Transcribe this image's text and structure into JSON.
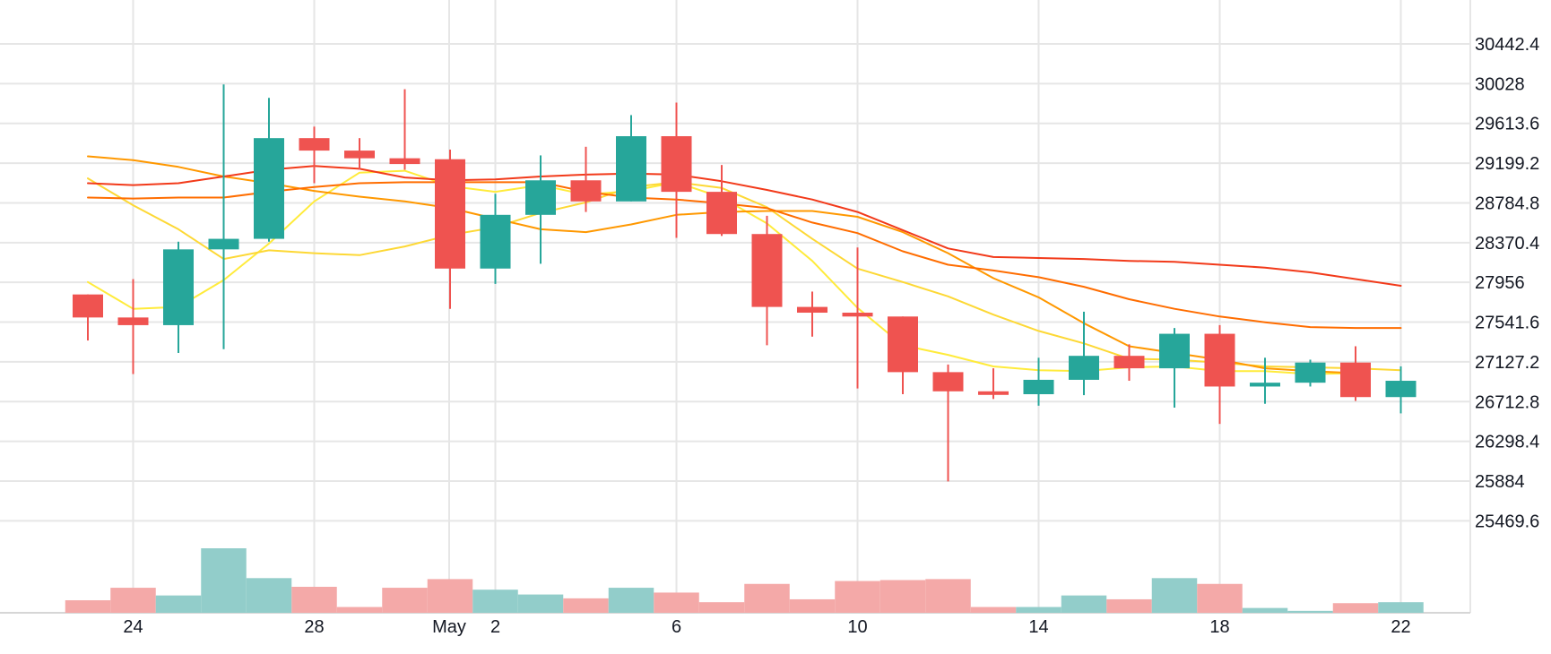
{
  "chart_data": {
    "type": "candlestick",
    "price_axis": {
      "ticks": [
        "30442.4",
        "30028",
        "29613.6",
        "29199.2",
        "28784.8",
        "28370.4",
        "27956",
        "27541.6",
        "27127.2",
        "26712.8",
        "26298.4",
        "25884",
        "25469.6"
      ],
      "range": [
        25055,
        30857
      ]
    },
    "x_axis_labels": [
      {
        "index": 1,
        "label": "24"
      },
      {
        "index": 5,
        "label": "28"
      },
      {
        "index": 8,
        "label": "May"
      },
      {
        "index": 9,
        "label": "2"
      },
      {
        "index": 13,
        "label": "6"
      },
      {
        "index": 17,
        "label": "10"
      },
      {
        "index": 21,
        "label": "14"
      },
      {
        "index": 25,
        "label": "18"
      },
      {
        "index": 29,
        "label": "22"
      }
    ],
    "candles": [
      {
        "o": 27830,
        "h": 27830,
        "l": 27350,
        "c": 27590
      },
      {
        "o": 27590,
        "h": 27990,
        "l": 27000,
        "c": 27510
      },
      {
        "o": 27510,
        "h": 28380,
        "l": 27220,
        "c": 28300
      },
      {
        "o": 28300,
        "h": 30020,
        "l": 27260,
        "c": 28410
      },
      {
        "o": 28410,
        "h": 29880,
        "l": 28380,
        "c": 29460
      },
      {
        "o": 29460,
        "h": 29580,
        "l": 28990,
        "c": 29330
      },
      {
        "o": 29330,
        "h": 29460,
        "l": 29130,
        "c": 29250
      },
      {
        "o": 29250,
        "h": 29970,
        "l": 29130,
        "c": 29190
      },
      {
        "o": 29240,
        "h": 29340,
        "l": 27680,
        "c": 28100
      },
      {
        "o": 28100,
        "h": 28880,
        "l": 27940,
        "c": 28660
      },
      {
        "o": 28660,
        "h": 29280,
        "l": 28150,
        "c": 29020
      },
      {
        "o": 29020,
        "h": 29370,
        "l": 28690,
        "c": 28800
      },
      {
        "o": 28800,
        "h": 29700,
        "l": 28800,
        "c": 29480
      },
      {
        "o": 29480,
        "h": 29830,
        "l": 28420,
        "c": 28900
      },
      {
        "o": 28900,
        "h": 29180,
        "l": 28440,
        "c": 28460
      },
      {
        "o": 28460,
        "h": 28650,
        "l": 27300,
        "c": 27700
      },
      {
        "o": 27700,
        "h": 27860,
        "l": 27390,
        "c": 27640
      },
      {
        "o": 27640,
        "h": 28320,
        "l": 26850,
        "c": 27600
      },
      {
        "o": 27600,
        "h": 27600,
        "l": 26790,
        "c": 27020
      },
      {
        "o": 27020,
        "h": 27100,
        "l": 25880,
        "c": 26820
      },
      {
        "o": 26820,
        "h": 27060,
        "l": 26740,
        "c": 26790
      },
      {
        "o": 26790,
        "h": 27170,
        "l": 26670,
        "c": 26940
      },
      {
        "o": 26940,
        "h": 27650,
        "l": 26780,
        "c": 27190
      },
      {
        "o": 27190,
        "h": 27310,
        "l": 26930,
        "c": 27060
      },
      {
        "o": 27060,
        "h": 27480,
        "l": 26650,
        "c": 27420
      },
      {
        "o": 27420,
        "h": 27510,
        "l": 26480,
        "c": 26870
      },
      {
        "o": 26870,
        "h": 27170,
        "l": 26690,
        "c": 26910
      },
      {
        "o": 26910,
        "h": 27150,
        "l": 26870,
        "c": 27120
      },
      {
        "o": 27120,
        "h": 27290,
        "l": 26720,
        "c": 26760
      },
      {
        "o": 26760,
        "h": 27080,
        "l": 26590,
        "c": 26930
      }
    ],
    "volumes": [
      0.13,
      0.26,
      0.18,
      0.67,
      0.36,
      0.27,
      0.06,
      0.26,
      0.35,
      0.24,
      0.19,
      0.15,
      0.26,
      0.21,
      0.11,
      0.3,
      0.14,
      0.33,
      0.34,
      0.35,
      0.06,
      0.06,
      0.18,
      0.14,
      0.36,
      0.3,
      0.05,
      0.02,
      0.1,
      0.11
    ],
    "moving_averages": [
      {
        "color": "#ffeb3b",
        "values": [
          27960,
          27680,
          27700,
          27980,
          28360,
          28800,
          29100,
          29120,
          28960,
          28900,
          28970,
          28870,
          28910,
          29000,
          28840,
          28570,
          28180,
          27690,
          27300,
          27200,
          27080,
          27040,
          27030,
          27070,
          27080,
          27030,
          27030,
          27000,
          27010
        ]
      },
      {
        "color": "#fdd835",
        "values": [
          29040,
          28760,
          28510,
          28200,
          28290,
          28260,
          28240,
          28330,
          28450,
          28530,
          28680,
          28790,
          28950,
          29000,
          28940,
          28740,
          28410,
          28100,
          27960,
          27810,
          27620,
          27450,
          27320,
          27160,
          27150,
          27120,
          27080,
          27070,
          27060,
          27040
        ]
      },
      {
        "color": "#ff9800",
        "values": [
          29270,
          29230,
          29160,
          29060,
          28990,
          28910,
          28850,
          28800,
          28730,
          28620,
          28510,
          28480,
          28560,
          28660,
          28690,
          28700,
          28700,
          28640,
          28480,
          28260,
          28000,
          27800,
          27530,
          27290,
          27220,
          27150,
          27060,
          27030,
          27010
        ]
      },
      {
        "color": "#ff6d00",
        "values": [
          28840,
          28830,
          28840,
          28840,
          28900,
          28950,
          28990,
          29000,
          29000,
          29000,
          29000,
          28900,
          28840,
          28820,
          28780,
          28730,
          28580,
          28470,
          28280,
          28140,
          28080,
          28010,
          27910,
          27780,
          27680,
          27600,
          27540,
          27490,
          27480,
          27480
        ]
      },
      {
        "color": "#f23a1a",
        "values": [
          28990,
          28970,
          28990,
          29060,
          29130,
          29170,
          29140,
          29050,
          29020,
          29030,
          29060,
          29080,
          29090,
          29080,
          29010,
          28920,
          28820,
          28690,
          28500,
          28310,
          28220,
          28210,
          28200,
          28180,
          28170,
          28140,
          28110,
          28060,
          27990,
          27920
        ]
      }
    ]
  }
}
